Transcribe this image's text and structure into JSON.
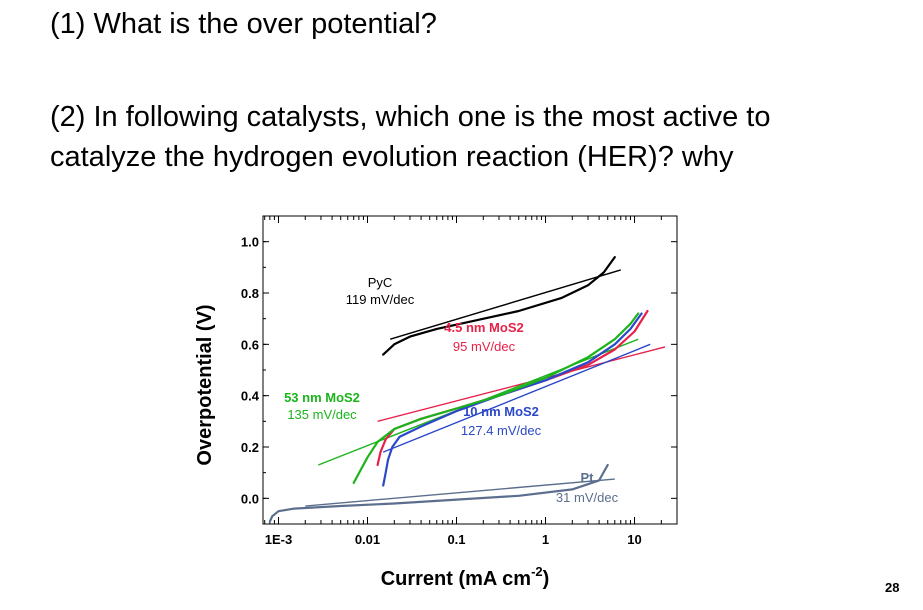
{
  "slide": {
    "question1": "(1) What is the over potential?",
    "question2_line1": "(2) In following catalysts, which one is the most active to",
    "question2_line2": "catalyze the hydrogen evolution reaction (HER)? why",
    "page_number": "28"
  },
  "chart_data": {
    "type": "line",
    "title": "",
    "xlabel": "Current (mA cm",
    "xlabel_sup": "-2",
    "xlabel_close": ")",
    "ylabel": "Overpotential (V)",
    "x_scale": "log",
    "xlim": [
      0.00067,
      30
    ],
    "ylim": [
      -0.1,
      1.1
    ],
    "x_ticks": [
      {
        "value": 0.001,
        "label": "1E-3"
      },
      {
        "value": 0.01,
        "label": "0.01"
      },
      {
        "value": 0.1,
        "label": "0.1"
      },
      {
        "value": 1,
        "label": "1"
      },
      {
        "value": 10,
        "label": "10"
      }
    ],
    "y_ticks": [
      {
        "value": 0.0,
        "label": "0.0"
      },
      {
        "value": 0.2,
        "label": "0.2"
      },
      {
        "value": 0.4,
        "label": "0.4"
      },
      {
        "value": 0.6,
        "label": "0.6"
      },
      {
        "value": 0.8,
        "label": "0.8"
      },
      {
        "value": 1.0,
        "label": "1.0"
      }
    ],
    "grid": false,
    "legend": "none",
    "series": [
      {
        "name": "PyC",
        "color": "#000000",
        "curve": [
          [
            0.015,
            0.56
          ],
          [
            0.02,
            0.6
          ],
          [
            0.03,
            0.63
          ],
          [
            0.06,
            0.66
          ],
          [
            0.15,
            0.69
          ],
          [
            0.5,
            0.73
          ],
          [
            1.5,
            0.78
          ],
          [
            3,
            0.83
          ],
          [
            4.5,
            0.88
          ],
          [
            6,
            0.94
          ]
        ],
        "fit": [
          [
            0.018,
            0.62
          ],
          [
            7,
            0.89
          ]
        ]
      },
      {
        "name": "4.5 nm MoS2",
        "color": "#e8214a",
        "curve": [
          [
            0.013,
            0.13
          ],
          [
            0.014,
            0.18
          ],
          [
            0.016,
            0.23
          ],
          [
            0.02,
            0.27
          ],
          [
            0.04,
            0.31
          ],
          [
            0.1,
            0.35
          ],
          [
            0.3,
            0.4
          ],
          [
            1,
            0.46
          ],
          [
            3,
            0.52
          ],
          [
            6,
            0.58
          ],
          [
            10,
            0.65
          ],
          [
            14,
            0.73
          ]
        ],
        "fit": [
          [
            0.013,
            0.3
          ],
          [
            22,
            0.59
          ]
        ]
      },
      {
        "name": "10 nm MoS2",
        "color": "#2b48c9",
        "curve": [
          [
            0.015,
            0.05
          ],
          [
            0.016,
            0.1
          ],
          [
            0.017,
            0.15
          ],
          [
            0.019,
            0.2
          ],
          [
            0.023,
            0.24
          ],
          [
            0.04,
            0.28
          ],
          [
            0.1,
            0.34
          ],
          [
            0.3,
            0.4
          ],
          [
            1,
            0.46
          ],
          [
            3,
            0.53
          ],
          [
            6,
            0.6
          ],
          [
            9,
            0.66
          ],
          [
            12,
            0.72
          ]
        ],
        "fit": [
          [
            0.015,
            0.18
          ],
          [
            15,
            0.6
          ]
        ]
      },
      {
        "name": "53 nm MoS2",
        "color": "#1cb41c",
        "curve": [
          [
            0.007,
            0.06
          ],
          [
            0.01,
            0.16
          ],
          [
            0.013,
            0.22
          ],
          [
            0.02,
            0.27
          ],
          [
            0.04,
            0.31
          ],
          [
            0.1,
            0.35
          ],
          [
            0.3,
            0.4
          ],
          [
            1,
            0.47
          ],
          [
            3,
            0.55
          ],
          [
            6,
            0.62
          ],
          [
            9,
            0.68
          ],
          [
            11,
            0.72
          ]
        ],
        "fit": [
          [
            0.0028,
            0.13
          ],
          [
            11,
            0.62
          ]
        ]
      },
      {
        "name": "Pt",
        "color": "#5c6e8e",
        "curve": [
          [
            0.0008,
            -0.09
          ],
          [
            0.00085,
            -0.07
          ],
          [
            0.001,
            -0.05
          ],
          [
            0.0015,
            -0.04
          ],
          [
            0.005,
            -0.03
          ],
          [
            0.02,
            -0.02
          ],
          [
            0.1,
            -0.005
          ],
          [
            0.5,
            0.01
          ],
          [
            2,
            0.035
          ],
          [
            4,
            0.07
          ],
          [
            5,
            0.13
          ]
        ],
        "fit": [
          [
            0.002,
            -0.03
          ],
          [
            6,
            0.075
          ]
        ]
      }
    ],
    "annotations": [
      {
        "name": "PyC",
        "slope": "119 mV/dec",
        "name_color": "#000000",
        "slope_color": "#000000"
      },
      {
        "name": "4.5 nm MoS2",
        "slope": "95 mV/dec",
        "name_color": "#e8214a",
        "slope_color": "#e8214a"
      },
      {
        "name": "53 nm MoS2",
        "slope": "135 mV/dec",
        "name_color": "#1cb41c",
        "slope_color": "#1cb41c"
      },
      {
        "name": "10 nm MoS2",
        "slope": "127.4 mV/dec",
        "name_color": "#2b48c9",
        "slope_color": "#2b48c9"
      },
      {
        "name": "Pt",
        "slope": "31 mV/dec",
        "name_color": "#5c6e8e",
        "slope_color": "#5c6e8e"
      }
    ]
  }
}
